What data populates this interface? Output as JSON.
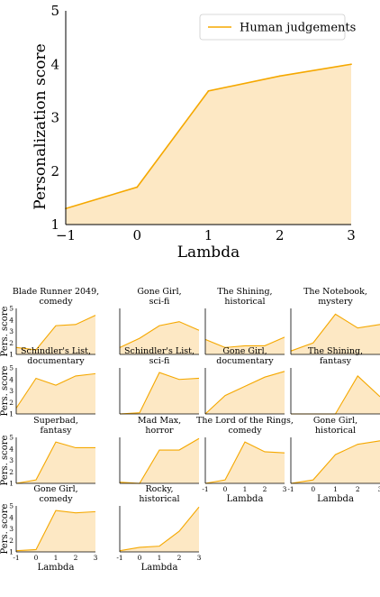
{
  "colors": {
    "line": "#f5a800",
    "fill": "#fde8c4",
    "axis": "#000000"
  },
  "chart_data": [
    {
      "type": "area",
      "xlabel": "Lambda",
      "ylabel": "Personalization score",
      "xlim": [
        -1,
        3
      ],
      "ylim": [
        1,
        5
      ],
      "xticks": [
        "−1",
        "0",
        "1",
        "2",
        "3"
      ],
      "yticks": [
        "1",
        "2",
        "3",
        "4",
        "5"
      ],
      "legend": {
        "entry": "Human judgements",
        "placement": "top-right"
      },
      "series": [
        {
          "name": "Human judgements",
          "x": [
            -1,
            0,
            1,
            2,
            3
          ],
          "y": [
            1.3,
            1.7,
            3.5,
            3.78,
            4.0
          ]
        }
      ]
    },
    {
      "type": "area",
      "ylabel": "Pers. score",
      "xlabel": "Lambda",
      "xlim": [
        -1,
        3
      ],
      "ylim": [
        1,
        5
      ],
      "yticks": [
        "1",
        "2",
        "3",
        "4",
        "5"
      ],
      "xticks": [
        "-1",
        "0",
        "1",
        "2",
        "3"
      ],
      "x": [
        -1,
        0,
        1,
        2,
        3
      ],
      "panels": [
        {
          "title": [
            "Blade Runner 2049,",
            "comedy"
          ],
          "y": [
            1.6,
            1.4,
            3.5,
            3.6,
            4.4
          ]
        },
        {
          "title": [
            "Gone Girl,",
            "sci-fi"
          ],
          "y": [
            1.6,
            2.4,
            3.5,
            3.85,
            3.1
          ]
        },
        {
          "title": [
            "The Shining,",
            "historical"
          ],
          "y": [
            2.3,
            1.6,
            1.75,
            1.75,
            2.5
          ]
        },
        {
          "title": [
            "The Notebook,",
            "mystery"
          ],
          "y": [
            1.3,
            2.0,
            4.5,
            3.3,
            3.6
          ]
        },
        {
          "title": [
            "Schindler's List,",
            "documentary"
          ],
          "y": [
            1.5,
            4.1,
            3.5,
            4.3,
            4.5
          ]
        },
        {
          "title": [
            "Schindler's List,",
            "sci-fi"
          ],
          "y": [
            1.0,
            1.1,
            4.6,
            4.0,
            4.1
          ]
        },
        {
          "title": [
            "Gone Girl,",
            "documentary"
          ],
          "y": [
            1.0,
            2.6,
            3.4,
            4.2,
            4.7
          ]
        },
        {
          "title": [
            "The Shining,",
            "fantasy"
          ],
          "y": [
            1.0,
            1.0,
            1.0,
            4.3,
            2.5
          ]
        },
        {
          "title": [
            "Superbad,",
            "fantasy"
          ],
          "y": [
            1.0,
            1.3,
            4.6,
            4.1,
            4.1
          ]
        },
        {
          "title": [
            "Mad Max,",
            "horror"
          ],
          "y": [
            1.1,
            1.0,
            3.9,
            3.9,
            4.9
          ]
        },
        {
          "title": [
            "The Lord of the Rings,",
            "comedy"
          ],
          "y": [
            1.0,
            1.3,
            4.6,
            3.75,
            3.65
          ]
        },
        {
          "title": [
            "Gone Girl,",
            "historical"
          ],
          "y": [
            1.0,
            1.3,
            3.5,
            4.4,
            4.7
          ]
        },
        {
          "title": [
            "Gone Girl,",
            "comedy"
          ],
          "y": [
            1.1,
            1.2,
            4.6,
            4.4,
            4.5
          ]
        },
        {
          "title": [
            "Rocky,",
            "historical"
          ],
          "y": [
            1.1,
            1.4,
            1.5,
            2.8,
            4.9
          ]
        }
      ]
    }
  ]
}
